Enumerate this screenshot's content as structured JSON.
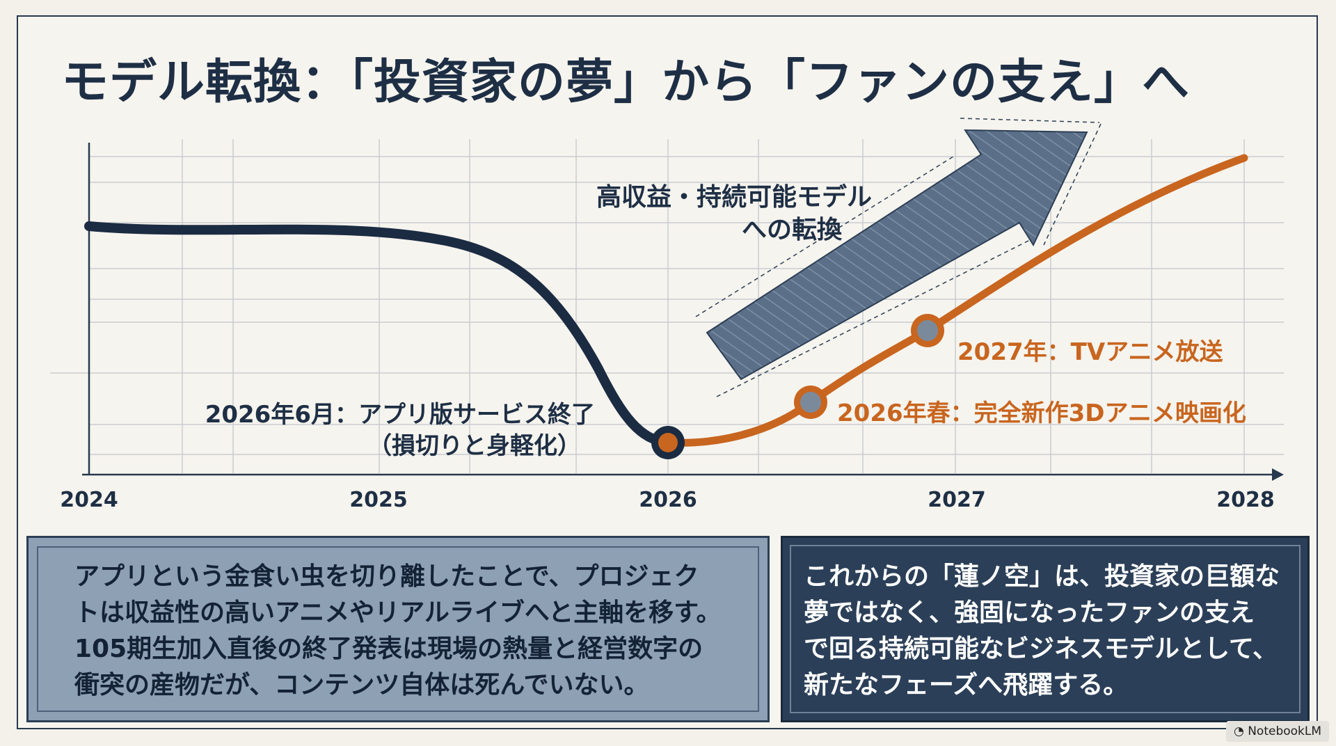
{
  "title": "モデル転換：「投資家の夢」から「ファンの支え」へ",
  "chart_data": {
    "type": "line",
    "x_ticks": [
      "2024",
      "2025",
      "2026",
      "2027",
      "2028"
    ],
    "annotations": {
      "app_end_line1": "2026年6月：アプリ版サービス終了",
      "app_end_line2": "（損切りと身軽化）",
      "movie": "2026年春：完全新作3Dアニメ映画化",
      "tv": "2027年：TVアニメ放送",
      "arrow_line1": "高収益・持続可能モデル",
      "arrow_line2": "への転換"
    },
    "colors": {
      "old_model": "#1b2b42",
      "new_model": "#c8651f",
      "arrow": "#5b7088"
    }
  },
  "panels": {
    "left": {
      "lines": [
        "アプリという金食い虫を切り離したことで、プロジェク",
        "トは収益性の高いアニメやリアルライブへと主軸を移す。",
        "105期生加入直後の終了発表は現場の熱量と経営数字の",
        "衝突の産物だが、コンテンツ自体は死んでいない。"
      ]
    },
    "right": {
      "lines": [
        "これからの「蓮ノ空」は、投資家の巨額な",
        "夢ではなく、強固になったファンの支え",
        "で回る持続可能なビジネスモデルとして、",
        "新たなフェーズへ飛躍する。"
      ]
    }
  },
  "badge": "NotebookLM"
}
